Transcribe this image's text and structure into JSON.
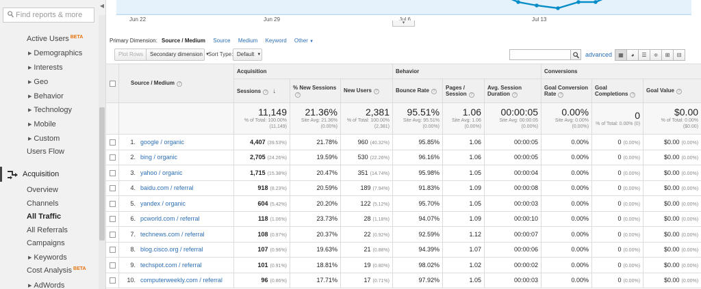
{
  "sidebar": {
    "search_placeholder": "Find reports & more",
    "beta_badge": "BETA",
    "items": [
      {
        "label": "Active Users",
        "beta": true,
        "arrow": false,
        "sub": false,
        "bold": false
      },
      {
        "label": "Demographics",
        "beta": false,
        "arrow": true,
        "sub": true,
        "bold": false
      },
      {
        "label": "Interests",
        "beta": false,
        "arrow": true,
        "sub": true,
        "bold": false
      },
      {
        "label": "Geo",
        "beta": false,
        "arrow": true,
        "sub": true,
        "bold": false
      },
      {
        "label": "Behavior",
        "beta": false,
        "arrow": true,
        "sub": true,
        "bold": false
      },
      {
        "label": "Technology",
        "beta": false,
        "arrow": true,
        "sub": true,
        "bold": false
      },
      {
        "label": "Mobile",
        "beta": false,
        "arrow": true,
        "sub": true,
        "bold": false
      },
      {
        "label": "Custom",
        "beta": false,
        "arrow": true,
        "sub": true,
        "bold": false
      },
      {
        "label": "Users Flow",
        "beta": false,
        "arrow": false,
        "sub": false,
        "bold": false
      }
    ],
    "section_label": "Acquisition",
    "acq_items": [
      {
        "label": "Overview",
        "beta": false,
        "arrow": false,
        "bold": false
      },
      {
        "label": "Channels",
        "beta": false,
        "arrow": false,
        "bold": false
      },
      {
        "label": "All Traffic",
        "beta": false,
        "arrow": false,
        "bold": true
      },
      {
        "label": "All Referrals",
        "beta": false,
        "arrow": false,
        "bold": false
      },
      {
        "label": "Campaigns",
        "beta": false,
        "arrow": false,
        "bold": false
      },
      {
        "label": "Keywords",
        "beta": false,
        "arrow": true,
        "bold": false
      },
      {
        "label": "Cost Analysis",
        "beta": true,
        "arrow": false,
        "bold": false
      },
      {
        "label": "AdWords",
        "beta": false,
        "arrow": true,
        "bold": false
      }
    ]
  },
  "chart": {
    "dates": [
      "Jun 22",
      "Jun 29",
      "Jul 6",
      "Jul 13"
    ],
    "line_color": "#058dc7",
    "fill_color": "#e5f2fb"
  },
  "toolbar": {
    "primary_dimension_label": "Primary Dimension:",
    "primary_dimension_value": "Source / Medium",
    "dimension_links": [
      "Source",
      "Medium",
      "Keyword",
      "Other"
    ],
    "plot_rows": "Plot Rows",
    "secondary_dimension": "Secondary dimension",
    "sort_type_label": "Sort Type:",
    "sort_type_value": "Default",
    "advanced": "advanced",
    "search_value": ""
  },
  "table": {
    "groups": [
      "Acquisition",
      "Behavior",
      "Conversions"
    ],
    "dimension_header": "Source / Medium",
    "columns": [
      "Sessions",
      "% New Sessions",
      "New Users",
      "Bounce Rate",
      "Pages / Session",
      "Avg. Session Duration",
      "Goal Conversion Rate",
      "Goal Completions",
      "Goal Value"
    ],
    "totals": [
      {
        "value": "11,149",
        "sub": "% of Total: 100.00% (11,149)"
      },
      {
        "value": "21.36%",
        "sub": "Site Avg: 21.36% (0.00%)"
      },
      {
        "value": "2,381",
        "sub": "% of Total: 100.00% (2,381)"
      },
      {
        "value": "95.51%",
        "sub": "Site Avg: 95.51% (0.00%)"
      },
      {
        "value": "1.06",
        "sub": "Site Avg: 1.06 (0.00%)"
      },
      {
        "value": "00:00:05",
        "sub": "Site Avg: 00:00:05 (0.00%)"
      },
      {
        "value": "0.00%",
        "sub": "Site Avg: 0.00% (0.00%)"
      },
      {
        "value": "0",
        "sub": "% of Total: 0.00% (0)"
      },
      {
        "value": "$0.00",
        "sub": "% of Total: 0.00% ($0.00)"
      }
    ],
    "rows": [
      {
        "idx": "1.",
        "source": "google / organic",
        "sessions": "4,407",
        "sessions_pct": "(39.53%)",
        "new_sessions": "21.78%",
        "new_users": "960",
        "new_users_pct": "(40.32%)",
        "bounce": "95.85%",
        "pages": "1.06",
        "duration": "00:00:05",
        "conv": "0.00%",
        "goals": "0",
        "goals_pct": "(0.00%)",
        "value": "$0.00",
        "value_pct": "(0.00%)"
      },
      {
        "idx": "2.",
        "source": "bing / organic",
        "sessions": "2,705",
        "sessions_pct": "(24.26%)",
        "new_sessions": "19.59%",
        "new_users": "530",
        "new_users_pct": "(22.26%)",
        "bounce": "96.16%",
        "pages": "1.06",
        "duration": "00:00:05",
        "conv": "0.00%",
        "goals": "0",
        "goals_pct": "(0.00%)",
        "value": "$0.00",
        "value_pct": "(0.00%)"
      },
      {
        "idx": "3.",
        "source": "yahoo / organic",
        "sessions": "1,715",
        "sessions_pct": "(15.38%)",
        "new_sessions": "20.47%",
        "new_users": "351",
        "new_users_pct": "(14.74%)",
        "bounce": "95.98%",
        "pages": "1.05",
        "duration": "00:00:04",
        "conv": "0.00%",
        "goals": "0",
        "goals_pct": "(0.00%)",
        "value": "$0.00",
        "value_pct": "(0.00%)"
      },
      {
        "idx": "4.",
        "source": "baidu.com / referral",
        "sessions": "918",
        "sessions_pct": "(8.23%)",
        "new_sessions": "20.59%",
        "new_users": "189",
        "new_users_pct": "(7.94%)",
        "bounce": "91.83%",
        "pages": "1.09",
        "duration": "00:00:08",
        "conv": "0.00%",
        "goals": "0",
        "goals_pct": "(0.00%)",
        "value": "$0.00",
        "value_pct": "(0.00%)"
      },
      {
        "idx": "5.",
        "source": "yandex / organic",
        "sessions": "604",
        "sessions_pct": "(5.42%)",
        "new_sessions": "20.20%",
        "new_users": "122",
        "new_users_pct": "(5.12%)",
        "bounce": "95.70%",
        "pages": "1.05",
        "duration": "00:00:03",
        "conv": "0.00%",
        "goals": "0",
        "goals_pct": "(0.00%)",
        "value": "$0.00",
        "value_pct": "(0.00%)"
      },
      {
        "idx": "6.",
        "source": "pcworld.com / referral",
        "sessions": "118",
        "sessions_pct": "(1.06%)",
        "new_sessions": "23.73%",
        "new_users": "28",
        "new_users_pct": "(1.18%)",
        "bounce": "94.07%",
        "pages": "1.09",
        "duration": "00:00:10",
        "conv": "0.00%",
        "goals": "0",
        "goals_pct": "(0.00%)",
        "value": "$0.00",
        "value_pct": "(0.00%)"
      },
      {
        "idx": "7.",
        "source": "technews.com / referral",
        "sessions": "108",
        "sessions_pct": "(0.97%)",
        "new_sessions": "20.37%",
        "new_users": "22",
        "new_users_pct": "(0.92%)",
        "bounce": "92.59%",
        "pages": "1.12",
        "duration": "00:00:07",
        "conv": "0.00%",
        "goals": "0",
        "goals_pct": "(0.00%)",
        "value": "$0.00",
        "value_pct": "(0.00%)"
      },
      {
        "idx": "8.",
        "source": "blog.cisco.org / referral",
        "sessions": "107",
        "sessions_pct": "(0.96%)",
        "new_sessions": "19.63%",
        "new_users": "21",
        "new_users_pct": "(0.88%)",
        "bounce": "94.39%",
        "pages": "1.07",
        "duration": "00:00:06",
        "conv": "0.00%",
        "goals": "0",
        "goals_pct": "(0.00%)",
        "value": "$0.00",
        "value_pct": "(0.00%)"
      },
      {
        "idx": "9.",
        "source": "techspot.com / referral",
        "sessions": "101",
        "sessions_pct": "(0.91%)",
        "new_sessions": "18.81%",
        "new_users": "19",
        "new_users_pct": "(0.80%)",
        "bounce": "98.02%",
        "pages": "1.02",
        "duration": "00:00:02",
        "conv": "0.00%",
        "goals": "0",
        "goals_pct": "(0.00%)",
        "value": "$0.00",
        "value_pct": "(0.00%)"
      },
      {
        "idx": "10.",
        "source": "computerweekly.com / referral",
        "sessions": "96",
        "sessions_pct": "(0.86%)",
        "new_sessions": "17.71%",
        "new_users": "17",
        "new_users_pct": "(0.71%)",
        "bounce": "97.92%",
        "pages": "1.05",
        "duration": "00:00:03",
        "conv": "0.00%",
        "goals": "0",
        "goals_pct": "(0.00%)",
        "value": "$0.00",
        "value_pct": "(0.00%)"
      }
    ]
  }
}
